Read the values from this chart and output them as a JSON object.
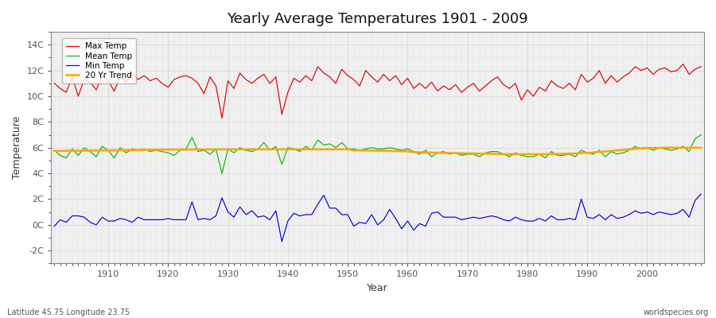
{
  "title": "Yearly Average Temperatures 1901 - 2009",
  "xlabel": "Year",
  "ylabel": "Temperature",
  "footnote_left": "Latitude 45.75 Longitude 23.75",
  "footnote_right": "worldspecies.org",
  "start_year": 1901,
  "end_year": 2009,
  "yticks": [
    -2,
    0,
    2,
    4,
    6,
    8,
    10,
    12,
    14
  ],
  "ytick_labels": [
    "-2C",
    "0C",
    "2C",
    "4C",
    "6C",
    "8C",
    "10C",
    "12C",
    "14C"
  ],
  "xticks": [
    1910,
    1920,
    1930,
    1940,
    1950,
    1960,
    1970,
    1980,
    1990,
    2000
  ],
  "colors": {
    "max_temp": "#dd0000",
    "mean_temp": "#00bb00",
    "min_temp": "#0000dd",
    "trend": "#ffa500",
    "background": "#ffffff",
    "grid": "#d8d8d8",
    "plot_bg": "#f0f0f0"
  },
  "max_temp": [
    11.0,
    10.6,
    10.3,
    11.5,
    10.0,
    11.3,
    11.1,
    10.5,
    11.6,
    11.2,
    10.4,
    11.5,
    11.1,
    11.8,
    11.3,
    11.6,
    11.2,
    11.4,
    11.0,
    10.7,
    11.3,
    11.5,
    11.6,
    11.4,
    11.0,
    10.2,
    11.5,
    10.8,
    8.3,
    11.2,
    10.6,
    11.8,
    11.3,
    11.0,
    11.4,
    11.7,
    11.0,
    11.5,
    8.6,
    10.3,
    11.4,
    11.1,
    11.6,
    11.2,
    12.3,
    11.8,
    11.5,
    11.0,
    12.1,
    11.6,
    11.3,
    10.8,
    12.0,
    11.5,
    11.1,
    11.7,
    11.2,
    11.6,
    10.9,
    11.4,
    10.6,
    11.0,
    10.6,
    11.1,
    10.4,
    10.8,
    10.5,
    10.9,
    10.3,
    10.7,
    11.0,
    10.4,
    10.8,
    11.2,
    11.5,
    10.9,
    10.6,
    11.0,
    9.7,
    10.5,
    10.0,
    10.7,
    10.4,
    11.2,
    10.8,
    10.6,
    11.0,
    10.5,
    11.7,
    11.1,
    11.4,
    12.0,
    11.0,
    11.6,
    11.1,
    11.5,
    11.8,
    12.3,
    12.0,
    12.2,
    11.7,
    12.1,
    12.2,
    11.9,
    12.0,
    12.5,
    11.7,
    12.1,
    12.3
  ],
  "mean_temp": [
    5.8,
    5.4,
    5.2,
    5.9,
    5.4,
    6.0,
    5.7,
    5.3,
    6.1,
    5.8,
    5.2,
    6.0,
    5.6,
    5.9,
    5.8,
    5.9,
    5.7,
    5.8,
    5.7,
    5.6,
    5.4,
    5.8,
    5.9,
    6.8,
    5.7,
    5.8,
    5.5,
    5.9,
    4.0,
    5.9,
    5.6,
    6.0,
    5.8,
    5.7,
    5.9,
    6.4,
    5.8,
    6.1,
    4.7,
    6.0,
    5.9,
    5.7,
    6.1,
    5.8,
    6.6,
    6.2,
    6.3,
    6.0,
    6.4,
    5.9,
    5.9,
    5.8,
    5.9,
    6.0,
    5.9,
    5.9,
    6.0,
    5.9,
    5.8,
    5.9,
    5.7,
    5.5,
    5.8,
    5.3,
    5.6,
    5.7,
    5.5,
    5.6,
    5.4,
    5.5,
    5.5,
    5.3,
    5.6,
    5.7,
    5.7,
    5.5,
    5.3,
    5.6,
    5.4,
    5.3,
    5.3,
    5.5,
    5.2,
    5.7,
    5.4,
    5.4,
    5.5,
    5.3,
    5.8,
    5.6,
    5.5,
    5.8,
    5.3,
    5.7,
    5.5,
    5.6,
    5.8,
    6.1,
    5.9,
    6.0,
    5.8,
    6.0,
    5.9,
    5.8,
    5.9,
    6.1,
    5.7,
    6.7,
    7.0
  ],
  "min_temp": [
    -0.1,
    0.4,
    0.2,
    0.7,
    0.7,
    0.6,
    0.2,
    0.0,
    0.6,
    0.3,
    0.3,
    0.5,
    0.4,
    0.2,
    0.6,
    0.4,
    0.4,
    0.4,
    0.4,
    0.5,
    0.4,
    0.4,
    0.4,
    1.8,
    0.4,
    0.5,
    0.4,
    0.7,
    2.1,
    1.0,
    0.6,
    1.4,
    0.8,
    1.1,
    0.6,
    0.7,
    0.4,
    1.1,
    -1.3,
    0.3,
    0.9,
    0.7,
    0.8,
    0.8,
    1.6,
    2.3,
    1.3,
    1.3,
    0.8,
    0.8,
    -0.1,
    0.2,
    0.1,
    0.8,
    0.0,
    0.4,
    1.2,
    0.5,
    -0.3,
    0.3,
    -0.4,
    0.1,
    -0.1,
    0.9,
    1.0,
    0.6,
    0.6,
    0.6,
    0.4,
    0.5,
    0.6,
    0.5,
    0.6,
    0.7,
    0.6,
    0.4,
    0.3,
    0.6,
    0.4,
    0.3,
    0.3,
    0.5,
    0.3,
    0.7,
    0.4,
    0.4,
    0.5,
    0.4,
    2.0,
    0.6,
    0.5,
    0.8,
    0.4,
    0.8,
    0.5,
    0.6,
    0.8,
    1.1,
    0.9,
    1.0,
    0.8,
    1.0,
    0.9,
    0.8,
    0.9,
    1.2,
    0.6,
    1.9,
    2.4
  ],
  "trend": [
    5.75,
    5.75,
    5.76,
    5.76,
    5.77,
    5.77,
    5.78,
    5.78,
    5.79,
    5.8,
    5.8,
    5.81,
    5.81,
    5.82,
    5.82,
    5.83,
    5.83,
    5.84,
    5.84,
    5.85,
    5.85,
    5.85,
    5.85,
    5.86,
    5.86,
    5.86,
    5.86,
    5.87,
    5.87,
    5.87,
    5.87,
    5.87,
    5.87,
    5.87,
    5.87,
    5.87,
    5.87,
    5.87,
    5.87,
    5.87,
    5.87,
    5.87,
    5.87,
    5.87,
    5.87,
    5.87,
    5.87,
    5.87,
    5.87,
    5.87,
    5.8,
    5.79,
    5.78,
    5.77,
    5.76,
    5.75,
    5.74,
    5.73,
    5.72,
    5.71,
    5.65,
    5.64,
    5.63,
    5.62,
    5.61,
    5.6,
    5.59,
    5.58,
    5.57,
    5.56,
    5.55,
    5.54,
    5.53,
    5.52,
    5.51,
    5.5,
    5.5,
    5.5,
    5.5,
    5.5,
    5.5,
    5.5,
    5.5,
    5.51,
    5.52,
    5.53,
    5.54,
    5.55,
    5.58,
    5.6,
    5.63,
    5.67,
    5.71,
    5.75,
    5.79,
    5.83,
    5.87,
    5.91,
    5.95,
    5.97,
    5.98,
    5.99,
    6.0,
    6.0,
    6.0,
    6.0,
    6.0,
    6.0,
    6.0
  ]
}
